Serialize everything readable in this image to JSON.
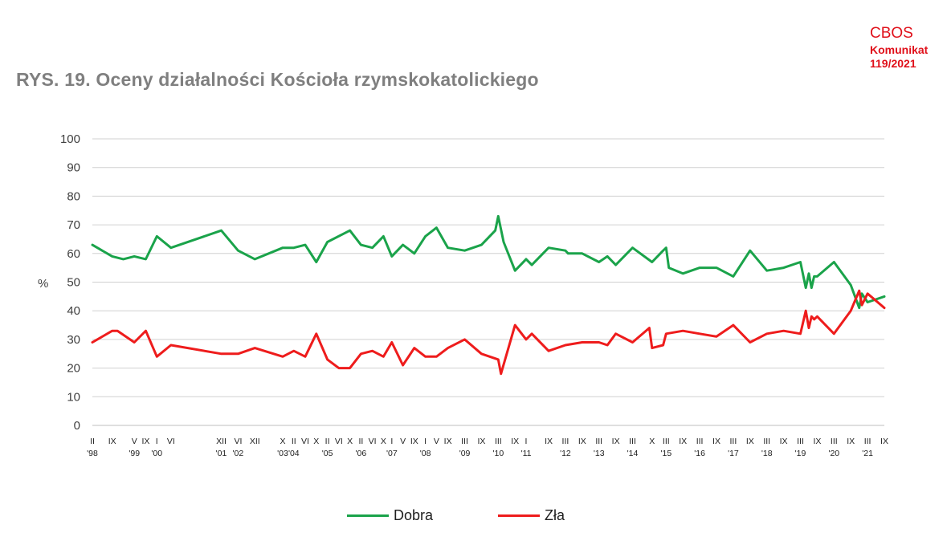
{
  "header": {
    "title": "RYS. 19.  Oceny działalności Kościoła rzymskokatolickiego",
    "org": "CBOS",
    "report_line1": "Komunikat",
    "report_line2": "119/2021"
  },
  "colors": {
    "dobra": "#1aa34a",
    "zla": "#ee1c1c",
    "grid": "#d0d0d0"
  },
  "chart_data": {
    "type": "line",
    "title": "RYS. 19.  Oceny działalności Kościoła rzymskokatolickiego",
    "ylabel": "%",
    "xlabel": "",
    "ylim": [
      0,
      100
    ],
    "yticks": [
      0,
      10,
      20,
      30,
      40,
      50,
      60,
      70,
      80,
      90,
      100
    ],
    "grid": true,
    "legend": "bottom",
    "x_tick_labels": [
      {
        "t": 1998.08,
        "month": "II",
        "year": "'98"
      },
      {
        "t": 1998.67,
        "month": "IX",
        "year": ""
      },
      {
        "t": 1999.33,
        "month": "V",
        "year": "'99"
      },
      {
        "t": 1999.67,
        "month": "IX",
        "year": ""
      },
      {
        "t": 2000.0,
        "month": "I",
        "year": "'00"
      },
      {
        "t": 2000.42,
        "month": "VI",
        "year": ""
      },
      {
        "t": 2001.92,
        "month": "XII",
        "year": "'01"
      },
      {
        "t": 2002.42,
        "month": "VI",
        "year": "'02"
      },
      {
        "t": 2002.92,
        "month": "XII",
        "year": ""
      },
      {
        "t": 2003.75,
        "month": "X",
        "year": "'03"
      },
      {
        "t": 2004.08,
        "month": "II",
        "year": "'04"
      },
      {
        "t": 2004.42,
        "month": "VI",
        "year": ""
      },
      {
        "t": 2004.75,
        "month": "X",
        "year": ""
      },
      {
        "t": 2005.08,
        "month": "II",
        "year": "'05"
      },
      {
        "t": 2005.42,
        "month": "VI",
        "year": ""
      },
      {
        "t": 2005.75,
        "month": "X",
        "year": ""
      },
      {
        "t": 2006.08,
        "month": "II",
        "year": "'06"
      },
      {
        "t": 2006.42,
        "month": "VI",
        "year": ""
      },
      {
        "t": 2006.75,
        "month": "X",
        "year": ""
      },
      {
        "t": 2007.0,
        "month": "I",
        "year": "'07"
      },
      {
        "t": 2007.33,
        "month": "V",
        "year": ""
      },
      {
        "t": 2007.67,
        "month": "IX",
        "year": ""
      },
      {
        "t": 2008.0,
        "month": "I",
        "year": "'08"
      },
      {
        "t": 2008.33,
        "month": "V",
        "year": ""
      },
      {
        "t": 2008.67,
        "month": "IX",
        "year": ""
      },
      {
        "t": 2009.17,
        "month": "III",
        "year": "'09"
      },
      {
        "t": 2009.67,
        "month": "IX",
        "year": ""
      },
      {
        "t": 2010.17,
        "month": "III",
        "year": "'10"
      },
      {
        "t": 2010.67,
        "month": "IX",
        "year": ""
      },
      {
        "t": 2011.0,
        "month": "I",
        "year": "'11"
      },
      {
        "t": 2011.67,
        "month": "IX",
        "year": ""
      },
      {
        "t": 2012.17,
        "month": "III",
        "year": "'12"
      },
      {
        "t": 2012.67,
        "month": "IX",
        "year": ""
      },
      {
        "t": 2013.17,
        "month": "III",
        "year": "'13"
      },
      {
        "t": 2013.67,
        "month": "IX",
        "year": ""
      },
      {
        "t": 2014.17,
        "month": "III",
        "year": "'14"
      },
      {
        "t": 2014.75,
        "month": "X",
        "year": ""
      },
      {
        "t": 2015.17,
        "month": "III",
        "year": "'15"
      },
      {
        "t": 2015.67,
        "month": "IX",
        "year": ""
      },
      {
        "t": 2016.17,
        "month": "III",
        "year": "'16"
      },
      {
        "t": 2016.67,
        "month": "IX",
        "year": ""
      },
      {
        "t": 2017.17,
        "month": "III",
        "year": "'17"
      },
      {
        "t": 2017.67,
        "month": "IX",
        "year": ""
      },
      {
        "t": 2018.17,
        "month": "III",
        "year": "'18"
      },
      {
        "t": 2018.67,
        "month": "IX",
        "year": ""
      },
      {
        "t": 2019.17,
        "month": "III",
        "year": "'19"
      },
      {
        "t": 2019.67,
        "month": "IX",
        "year": ""
      },
      {
        "t": 2020.17,
        "month": "III",
        "year": "'20"
      },
      {
        "t": 2020.67,
        "month": "IX",
        "year": ""
      },
      {
        "t": 2021.17,
        "month": "III",
        "year": "'21"
      },
      {
        "t": 2021.67,
        "month": "IX",
        "year": ""
      }
    ],
    "series": [
      {
        "name": "Dobra",
        "color": "#1aa34a",
        "points": [
          [
            1998.08,
            63
          ],
          [
            1998.67,
            59
          ],
          [
            1999.0,
            58
          ],
          [
            1999.33,
            59
          ],
          [
            1999.67,
            58
          ],
          [
            2000.0,
            66
          ],
          [
            2000.42,
            62
          ],
          [
            2001.92,
            68
          ],
          [
            2002.42,
            61
          ],
          [
            2002.92,
            58
          ],
          [
            2003.75,
            62
          ],
          [
            2004.08,
            62
          ],
          [
            2004.42,
            63
          ],
          [
            2004.75,
            57
          ],
          [
            2005.08,
            64
          ],
          [
            2005.75,
            68
          ],
          [
            2006.08,
            63
          ],
          [
            2006.42,
            62
          ],
          [
            2006.75,
            66
          ],
          [
            2007.0,
            59
          ],
          [
            2007.33,
            63
          ],
          [
            2007.67,
            60
          ],
          [
            2008.0,
            66
          ],
          [
            2008.33,
            69
          ],
          [
            2008.67,
            62
          ],
          [
            2009.17,
            61
          ],
          [
            2009.67,
            63
          ],
          [
            2010.08,
            68
          ],
          [
            2010.17,
            73
          ],
          [
            2010.33,
            64
          ],
          [
            2010.67,
            54
          ],
          [
            2011.0,
            58
          ],
          [
            2011.17,
            56
          ],
          [
            2011.67,
            62
          ],
          [
            2012.17,
            61
          ],
          [
            2012.25,
            60
          ],
          [
            2012.67,
            60
          ],
          [
            2013.17,
            57
          ],
          [
            2013.42,
            59
          ],
          [
            2013.67,
            56
          ],
          [
            2014.17,
            62
          ],
          [
            2014.75,
            57
          ],
          [
            2015.08,
            61
          ],
          [
            2015.17,
            62
          ],
          [
            2015.25,
            55
          ],
          [
            2015.67,
            53
          ],
          [
            2016.17,
            55
          ],
          [
            2016.67,
            55
          ],
          [
            2017.17,
            52
          ],
          [
            2017.67,
            61
          ],
          [
            2018.17,
            54
          ],
          [
            2018.67,
            55
          ],
          [
            2019.17,
            57
          ],
          [
            2019.33,
            48
          ],
          [
            2019.42,
            53
          ],
          [
            2019.5,
            48
          ],
          [
            2019.58,
            52
          ],
          [
            2019.67,
            52
          ],
          [
            2020.17,
            57
          ],
          [
            2020.67,
            49
          ],
          [
            2020.92,
            41
          ],
          [
            2021.0,
            46
          ],
          [
            2021.17,
            43
          ],
          [
            2021.67,
            45
          ]
        ]
      },
      {
        "name": "Zła",
        "color": "#ee1c1c",
        "points": [
          [
            1998.08,
            29
          ],
          [
            1998.67,
            33
          ],
          [
            1998.83,
            33
          ],
          [
            1999.33,
            29
          ],
          [
            1999.67,
            33
          ],
          [
            2000.0,
            24
          ],
          [
            2000.42,
            28
          ],
          [
            2001.92,
            25
          ],
          [
            2002.42,
            25
          ],
          [
            2002.92,
            27
          ],
          [
            2003.75,
            24
          ],
          [
            2004.08,
            26
          ],
          [
            2004.42,
            24
          ],
          [
            2004.75,
            32
          ],
          [
            2005.08,
            23
          ],
          [
            2005.42,
            20
          ],
          [
            2005.75,
            20
          ],
          [
            2006.08,
            25
          ],
          [
            2006.42,
            26
          ],
          [
            2006.75,
            24
          ],
          [
            2007.0,
            29
          ],
          [
            2007.33,
            21
          ],
          [
            2007.67,
            27
          ],
          [
            2008.0,
            24
          ],
          [
            2008.33,
            24
          ],
          [
            2008.67,
            27
          ],
          [
            2009.17,
            30
          ],
          [
            2009.67,
            25
          ],
          [
            2010.17,
            23
          ],
          [
            2010.25,
            18
          ],
          [
            2010.67,
            35
          ],
          [
            2011.0,
            30
          ],
          [
            2011.17,
            32
          ],
          [
            2011.67,
            26
          ],
          [
            2012.17,
            28
          ],
          [
            2012.67,
            29
          ],
          [
            2013.17,
            29
          ],
          [
            2013.42,
            28
          ],
          [
            2013.67,
            32
          ],
          [
            2014.17,
            29
          ],
          [
            2014.67,
            34
          ],
          [
            2014.75,
            27
          ],
          [
            2015.08,
            28
          ],
          [
            2015.17,
            32
          ],
          [
            2015.67,
            33
          ],
          [
            2016.17,
            32
          ],
          [
            2016.67,
            31
          ],
          [
            2017.17,
            35
          ],
          [
            2017.67,
            29
          ],
          [
            2018.17,
            32
          ],
          [
            2018.67,
            33
          ],
          [
            2019.17,
            32
          ],
          [
            2019.33,
            40
          ],
          [
            2019.42,
            34
          ],
          [
            2019.5,
            38
          ],
          [
            2019.58,
            37
          ],
          [
            2019.67,
            38
          ],
          [
            2020.17,
            32
          ],
          [
            2020.67,
            40
          ],
          [
            2020.92,
            47
          ],
          [
            2021.0,
            42
          ],
          [
            2021.17,
            46
          ],
          [
            2021.67,
            41
          ]
        ]
      }
    ]
  }
}
